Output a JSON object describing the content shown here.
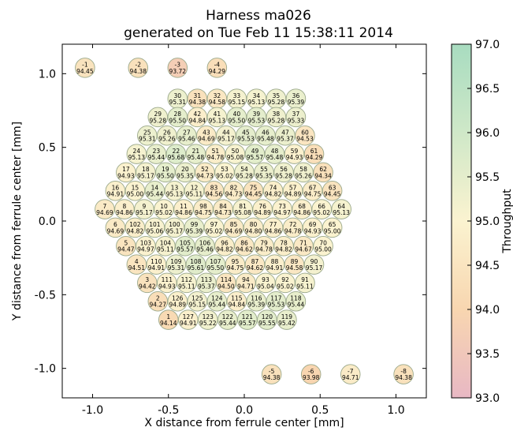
{
  "chart_data": {
    "type": "scatter",
    "title": "Harness ma026",
    "subtitle": "generated on Tue Feb 11 15:38:11 2014",
    "xlabel": "X distance from ferrule center [mm]",
    "ylabel": "Y distance from ferrule center [mm]",
    "colorbar_label": "Throughput",
    "xlim": [
      -1.2,
      1.2
    ],
    "ylim": [
      -1.2,
      1.2
    ],
    "xticks": [
      "-1.0",
      "-0.5",
      "0.0",
      "0.5",
      "1.0"
    ],
    "yticks": [
      "1.0",
      "0.5",
      "0.0",
      "-0.5",
      "-1.0"
    ],
    "xtick_values": [
      -1.0,
      -0.5,
      0.0,
      0.5,
      1.0
    ],
    "ytick_values": [
      1.0,
      0.5,
      0.0,
      -0.5,
      -1.0
    ],
    "colorbar_range": [
      93.0,
      97.0
    ],
    "colorbar_ticks": [
      "97.0",
      "96.5",
      "96.0",
      "95.5",
      "95.0",
      "94.5",
      "94.0",
      "93.5",
      "93.0"
    ],
    "colorbar_tick_values": [
      97.0,
      96.5,
      96.0,
      95.5,
      95.0,
      94.5,
      94.0,
      93.5,
      93.0
    ],
    "grid": false,
    "fibers": [
      {
        "id": "-1",
        "value": 94.45,
        "x": -1.05,
        "y": 1.04
      },
      {
        "id": "-2",
        "value": 94.38,
        "x": -0.7,
        "y": 1.04
      },
      {
        "id": "-3",
        "value": 93.72,
        "x": -0.44,
        "y": 1.04
      },
      {
        "id": "-4",
        "value": 94.29,
        "x": -0.18,
        "y": 1.04
      },
      {
        "id": "30",
        "value": 95.31,
        "x": -0.44,
        "y": 0.83
      },
      {
        "id": "31",
        "value": 94.38,
        "x": -0.31,
        "y": 0.83
      },
      {
        "id": "32",
        "value": 94.58,
        "x": -0.18,
        "y": 0.83
      },
      {
        "id": "33",
        "value": 95.15,
        "x": -0.05,
        "y": 0.83
      },
      {
        "id": "34",
        "value": 95.13,
        "x": 0.08,
        "y": 0.83
      },
      {
        "id": "35",
        "value": 95.28,
        "x": 0.21,
        "y": 0.83
      },
      {
        "id": "36",
        "value": 95.39,
        "x": 0.34,
        "y": 0.83
      },
      {
        "id": "29",
        "value": 95.28,
        "x": -0.57,
        "y": 0.705
      },
      {
        "id": "28",
        "value": 95.5,
        "x": -0.44,
        "y": 0.705
      },
      {
        "id": "42",
        "value": 94.84,
        "x": -0.31,
        "y": 0.705
      },
      {
        "id": "41",
        "value": 95.13,
        "x": -0.18,
        "y": 0.705
      },
      {
        "id": "40",
        "value": 95.5,
        "x": -0.05,
        "y": 0.705
      },
      {
        "id": "39",
        "value": 95.53,
        "x": 0.08,
        "y": 0.705
      },
      {
        "id": "38",
        "value": 95.28,
        "x": 0.21,
        "y": 0.705
      },
      {
        "id": "37",
        "value": 95.33,
        "x": 0.34,
        "y": 0.705
      },
      {
        "id": "25",
        "value": 95.31,
        "x": -0.64,
        "y": 0.58
      },
      {
        "id": "26",
        "value": 95.26,
        "x": -0.51,
        "y": 0.58
      },
      {
        "id": "27",
        "value": 95.46,
        "x": -0.38,
        "y": 0.58
      },
      {
        "id": "43",
        "value": 94.69,
        "x": -0.25,
        "y": 0.58
      },
      {
        "id": "44",
        "value": 95.17,
        "x": -0.12,
        "y": 0.58
      },
      {
        "id": "45",
        "value": 95.53,
        "x": 0.01,
        "y": 0.58
      },
      {
        "id": "46",
        "value": 95.48,
        "x": 0.14,
        "y": 0.58
      },
      {
        "id": "47",
        "value": 95.37,
        "x": 0.27,
        "y": 0.58
      },
      {
        "id": "60",
        "value": 94.53,
        "x": 0.4,
        "y": 0.58
      },
      {
        "id": "24",
        "value": 95.13,
        "x": -0.71,
        "y": 0.455
      },
      {
        "id": "23",
        "value": 95.44,
        "x": -0.58,
        "y": 0.455
      },
      {
        "id": "22",
        "value": 95.68,
        "x": -0.45,
        "y": 0.455
      },
      {
        "id": "21",
        "value": 95.48,
        "x": -0.32,
        "y": 0.455
      },
      {
        "id": "51",
        "value": 94.78,
        "x": -0.19,
        "y": 0.455
      },
      {
        "id": "50",
        "value": 95.08,
        "x": -0.06,
        "y": 0.455
      },
      {
        "id": "49",
        "value": 95.57,
        "x": 0.07,
        "y": 0.455
      },
      {
        "id": "48",
        "value": 95.48,
        "x": 0.2,
        "y": 0.455
      },
      {
        "id": "59",
        "value": 94.93,
        "x": 0.33,
        "y": 0.455
      },
      {
        "id": "61",
        "value": 94.29,
        "x": 0.46,
        "y": 0.455
      },
      {
        "id": "17",
        "value": 94.93,
        "x": -0.78,
        "y": 0.33
      },
      {
        "id": "18",
        "value": 95.17,
        "x": -0.65,
        "y": 0.33
      },
      {
        "id": "19",
        "value": 95.5,
        "x": -0.52,
        "y": 0.33
      },
      {
        "id": "20",
        "value": 95.35,
        "x": -0.39,
        "y": 0.33
      },
      {
        "id": "52",
        "value": 94.73,
        "x": -0.26,
        "y": 0.33
      },
      {
        "id": "53",
        "value": 95.02,
        "x": -0.13,
        "y": 0.33
      },
      {
        "id": "54",
        "value": 95.28,
        "x": 0.0,
        "y": 0.33
      },
      {
        "id": "55",
        "value": 95.35,
        "x": 0.13,
        "y": 0.33
      },
      {
        "id": "56",
        "value": 95.28,
        "x": 0.26,
        "y": 0.33
      },
      {
        "id": "58",
        "value": 95.26,
        "x": 0.39,
        "y": 0.33
      },
      {
        "id": "62",
        "value": 94.34,
        "x": 0.52,
        "y": 0.33
      },
      {
        "id": "16",
        "value": 94.91,
        "x": -0.85,
        "y": 0.205
      },
      {
        "id": "15",
        "value": 95.0,
        "x": -0.72,
        "y": 0.205
      },
      {
        "id": "14",
        "value": 95.44,
        "x": -0.59,
        "y": 0.205
      },
      {
        "id": "13",
        "value": 95.13,
        "x": -0.46,
        "y": 0.205
      },
      {
        "id": "12",
        "value": 95.11,
        "x": -0.33,
        "y": 0.205
      },
      {
        "id": "83",
        "value": 94.56,
        "x": -0.2,
        "y": 0.205
      },
      {
        "id": "82",
        "value": 94.73,
        "x": -0.07,
        "y": 0.205
      },
      {
        "id": "75",
        "value": 94.45,
        "x": 0.06,
        "y": 0.205
      },
      {
        "id": "74",
        "value": 94.82,
        "x": 0.19,
        "y": 0.205
      },
      {
        "id": "57",
        "value": 94.89,
        "x": 0.32,
        "y": 0.205
      },
      {
        "id": "67",
        "value": 94.75,
        "x": 0.45,
        "y": 0.205
      },
      {
        "id": "63",
        "value": 94.45,
        "x": 0.58,
        "y": 0.205
      },
      {
        "id": "7",
        "value": 94.69,
        "x": -0.92,
        "y": 0.08
      },
      {
        "id": "8",
        "value": 94.86,
        "x": -0.79,
        "y": 0.08
      },
      {
        "id": "9",
        "value": 95.17,
        "x": -0.66,
        "y": 0.08
      },
      {
        "id": "10",
        "value": 95.02,
        "x": -0.53,
        "y": 0.08
      },
      {
        "id": "11",
        "value": 94.86,
        "x": -0.4,
        "y": 0.08
      },
      {
        "id": "98",
        "value": 94.75,
        "x": -0.27,
        "y": 0.08
      },
      {
        "id": "84",
        "value": 94.73,
        "x": -0.14,
        "y": 0.08
      },
      {
        "id": "81",
        "value": 95.08,
        "x": -0.01,
        "y": 0.08
      },
      {
        "id": "76",
        "value": 94.89,
        "x": 0.12,
        "y": 0.08
      },
      {
        "id": "73",
        "value": 94.97,
        "x": 0.25,
        "y": 0.08
      },
      {
        "id": "68",
        "value": 94.86,
        "x": 0.38,
        "y": 0.08
      },
      {
        "id": "66",
        "value": 95.02,
        "x": 0.51,
        "y": 0.08
      },
      {
        "id": "64",
        "value": 95.13,
        "x": 0.64,
        "y": 0.08
      },
      {
        "id": "6",
        "value": 94.69,
        "x": -0.85,
        "y": -0.045
      },
      {
        "id": "102",
        "value": 94.82,
        "x": -0.72,
        "y": -0.045
      },
      {
        "id": "101",
        "value": 95.06,
        "x": -0.59,
        "y": -0.045
      },
      {
        "id": "100",
        "value": 95.17,
        "x": -0.46,
        "y": -0.045
      },
      {
        "id": "99",
        "value": 95.39,
        "x": -0.33,
        "y": -0.045
      },
      {
        "id": "97",
        "value": 95.02,
        "x": -0.2,
        "y": -0.045
      },
      {
        "id": "85",
        "value": 94.69,
        "x": -0.07,
        "y": -0.045
      },
      {
        "id": "80",
        "value": 94.8,
        "x": 0.06,
        "y": -0.045
      },
      {
        "id": "77",
        "value": 94.86,
        "x": 0.19,
        "y": -0.045
      },
      {
        "id": "72",
        "value": 94.78,
        "x": 0.32,
        "y": -0.045
      },
      {
        "id": "69",
        "value": 94.93,
        "x": 0.45,
        "y": -0.045
      },
      {
        "id": "65",
        "value": 95.0,
        "x": 0.58,
        "y": -0.045
      },
      {
        "id": "5",
        "value": 94.47,
        "x": -0.78,
        "y": -0.17
      },
      {
        "id": "103",
        "value": 94.97,
        "x": -0.65,
        "y": -0.17
      },
      {
        "id": "104",
        "value": 95.11,
        "x": -0.52,
        "y": -0.17
      },
      {
        "id": "105",
        "value": 95.57,
        "x": -0.39,
        "y": -0.17
      },
      {
        "id": "106",
        "value": 95.46,
        "x": -0.26,
        "y": -0.17
      },
      {
        "id": "96",
        "value": 94.82,
        "x": -0.13,
        "y": -0.17
      },
      {
        "id": "86",
        "value": 94.62,
        "x": 0.0,
        "y": -0.17
      },
      {
        "id": "79",
        "value": 94.78,
        "x": 0.13,
        "y": -0.17
      },
      {
        "id": "78",
        "value": 94.82,
        "x": 0.26,
        "y": -0.17
      },
      {
        "id": "71",
        "value": 94.67,
        "x": 0.39,
        "y": -0.17
      },
      {
        "id": "70",
        "value": 95.0,
        "x": 0.52,
        "y": -0.17
      },
      {
        "id": "4",
        "value": 94.51,
        "x": -0.71,
        "y": -0.295
      },
      {
        "id": "110",
        "value": 94.91,
        "x": -0.58,
        "y": -0.295
      },
      {
        "id": "109",
        "value": 95.31,
        "x": -0.45,
        "y": -0.295
      },
      {
        "id": "108",
        "value": 95.61,
        "x": -0.32,
        "y": -0.295
      },
      {
        "id": "107",
        "value": 95.5,
        "x": -0.19,
        "y": -0.295
      },
      {
        "id": "95",
        "value": 94.75,
        "x": -0.06,
        "y": -0.295
      },
      {
        "id": "87",
        "value": 94.62,
        "x": 0.07,
        "y": -0.295
      },
      {
        "id": "88",
        "value": 94.91,
        "x": 0.2,
        "y": -0.295
      },
      {
        "id": "89",
        "value": 94.58,
        "x": 0.33,
        "y": -0.295
      },
      {
        "id": "90",
        "value": 95.17,
        "x": 0.46,
        "y": -0.295
      },
      {
        "id": "3",
        "value": 94.42,
        "x": -0.64,
        "y": -0.42
      },
      {
        "id": "111",
        "value": 94.93,
        "x": -0.51,
        "y": -0.42
      },
      {
        "id": "112",
        "value": 95.11,
        "x": -0.38,
        "y": -0.42
      },
      {
        "id": "113",
        "value": 95.37,
        "x": -0.25,
        "y": -0.42
      },
      {
        "id": "114",
        "value": 94.5,
        "x": -0.12,
        "y": -0.42
      },
      {
        "id": "94",
        "value": 94.71,
        "x": 0.01,
        "y": -0.42
      },
      {
        "id": "93",
        "value": 95.04,
        "x": 0.14,
        "y": -0.42
      },
      {
        "id": "92",
        "value": 95.02,
        "x": 0.27,
        "y": -0.42
      },
      {
        "id": "91",
        "value": 95.11,
        "x": 0.4,
        "y": -0.42
      },
      {
        "id": "2",
        "value": 94.27,
        "x": -0.57,
        "y": -0.545
      },
      {
        "id": "126",
        "value": 94.89,
        "x": -0.44,
        "y": -0.545
      },
      {
        "id": "125",
        "value": 95.15,
        "x": -0.31,
        "y": -0.545
      },
      {
        "id": "124",
        "value": 95.44,
        "x": -0.18,
        "y": -0.545
      },
      {
        "id": "115",
        "value": 94.84,
        "x": -0.05,
        "y": -0.545
      },
      {
        "id": "116",
        "value": 95.39,
        "x": 0.08,
        "y": -0.545
      },
      {
        "id": "117",
        "value": 95.53,
        "x": 0.21,
        "y": -0.545
      },
      {
        "id": "118",
        "value": 95.44,
        "x": 0.34,
        "y": -0.545
      },
      {
        "id": "1",
        "value": 94.14,
        "x": -0.5,
        "y": -0.67
      },
      {
        "id": "127",
        "value": 94.91,
        "x": -0.37,
        "y": -0.67
      },
      {
        "id": "123",
        "value": 95.22,
        "x": -0.24,
        "y": -0.67
      },
      {
        "id": "122",
        "value": 95.44,
        "x": -0.11,
        "y": -0.67
      },
      {
        "id": "121",
        "value": 95.57,
        "x": 0.02,
        "y": -0.67
      },
      {
        "id": "120",
        "value": 95.55,
        "x": 0.15,
        "y": -0.67
      },
      {
        "id": "119",
        "value": 95.42,
        "x": 0.28,
        "y": -0.67
      },
      {
        "id": "-5",
        "value": 94.38,
        "x": 0.18,
        "y": -1.04
      },
      {
        "id": "-6",
        "value": 93.98,
        "x": 0.44,
        "y": -1.04
      },
      {
        "id": "-7",
        "value": 94.71,
        "x": 0.7,
        "y": -1.04
      },
      {
        "id": "-8",
        "value": 94.38,
        "x": 1.05,
        "y": -1.04
      }
    ]
  }
}
